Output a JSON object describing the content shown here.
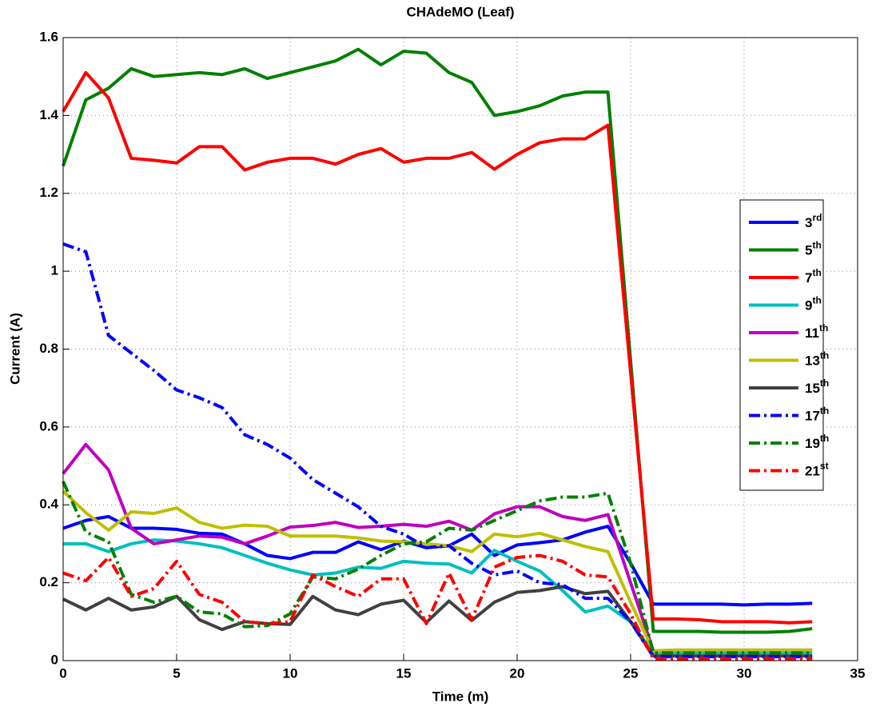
{
  "chart_data": {
    "type": "line",
    "title": "CHAdeMO (Leaf)",
    "xlabel": "Time (m)",
    "ylabel": "Current (A)",
    "x": [
      0,
      1,
      2,
      3,
      4,
      5,
      6,
      7,
      8,
      9,
      10,
      11,
      12,
      13,
      14,
      15,
      16,
      17,
      18,
      19,
      20,
      21,
      22,
      23,
      24,
      25,
      26,
      27,
      28,
      29,
      30,
      31,
      32,
      33
    ],
    "xlim": [
      0,
      35
    ],
    "xticks": [
      0,
      5,
      10,
      15,
      20,
      25,
      30,
      35
    ],
    "ylim": [
      0,
      1.6
    ],
    "yticks": [
      0,
      0.2,
      0.4,
      0.6,
      0.8,
      1,
      1.2,
      1.4,
      1.6
    ],
    "grid": true,
    "legend": "right",
    "series": [
      {
        "name": "3rd",
        "color": "#0000ff",
        "linestyle": "-",
        "values": [
          0.34,
          0.36,
          0.37,
          0.34,
          0.34,
          0.337,
          0.327,
          0.325,
          0.3,
          0.27,
          0.262,
          0.278,
          0.278,
          0.305,
          0.285,
          0.307,
          0.29,
          0.295,
          0.325,
          0.27,
          0.297,
          0.303,
          0.31,
          0.33,
          0.345,
          0.25,
          0.145,
          0.145,
          0.145,
          0.145,
          0.143,
          0.145,
          0.145,
          0.147
        ]
      },
      {
        "name": "5th",
        "color": "#008000",
        "linestyle": "-",
        "values": [
          1.27,
          1.44,
          1.47,
          1.52,
          1.5,
          1.505,
          1.51,
          1.505,
          1.52,
          1.495,
          1.51,
          1.525,
          1.54,
          1.57,
          1.53,
          1.565,
          1.56,
          1.51,
          1.485,
          1.4,
          1.41,
          1.425,
          1.45,
          1.46,
          1.46,
          0.77,
          0.075,
          0.075,
          0.075,
          0.073,
          0.073,
          0.073,
          0.075,
          0.082
        ]
      },
      {
        "name": "7th",
        "color": "#ff0000",
        "linestyle": "-",
        "values": [
          1.41,
          1.51,
          1.445,
          1.29,
          1.285,
          1.278,
          1.32,
          1.32,
          1.26,
          1.28,
          1.29,
          1.29,
          1.275,
          1.3,
          1.315,
          1.28,
          1.29,
          1.29,
          1.305,
          1.262,
          1.3,
          1.33,
          1.34,
          1.34,
          1.375,
          0.74,
          0.107,
          0.107,
          0.105,
          0.1,
          0.1,
          0.1,
          0.097,
          0.1
        ]
      },
      {
        "name": "9th",
        "color": "#00bfbf",
        "linestyle": "-",
        "values": [
          0.3,
          0.3,
          0.28,
          0.3,
          0.31,
          0.307,
          0.3,
          0.29,
          0.27,
          0.25,
          0.233,
          0.22,
          0.225,
          0.24,
          0.237,
          0.255,
          0.25,
          0.248,
          0.225,
          0.283,
          0.255,
          0.23,
          0.18,
          0.125,
          0.14,
          0.1,
          0.02,
          0.02,
          0.02,
          0.02,
          0.02,
          0.02,
          0.02,
          0.02
        ]
      },
      {
        "name": "11th",
        "color": "#bf00bf",
        "linestyle": "-",
        "values": [
          0.48,
          0.555,
          0.49,
          0.34,
          0.3,
          0.31,
          0.32,
          0.317,
          0.3,
          0.32,
          0.343,
          0.347,
          0.355,
          0.342,
          0.345,
          0.35,
          0.345,
          0.358,
          0.335,
          0.377,
          0.395,
          0.395,
          0.37,
          0.36,
          0.375,
          0.2,
          0.025,
          0.027,
          0.027,
          0.027,
          0.027,
          0.027,
          0.027,
          0.027
        ]
      },
      {
        "name": "13th",
        "color": "#bfbf00",
        "linestyle": "-",
        "values": [
          0.435,
          0.38,
          0.335,
          0.382,
          0.378,
          0.392,
          0.355,
          0.34,
          0.348,
          0.345,
          0.32,
          0.32,
          0.32,
          0.315,
          0.307,
          0.305,
          0.3,
          0.295,
          0.28,
          0.325,
          0.318,
          0.327,
          0.31,
          0.293,
          0.28,
          0.15,
          0.025,
          0.027,
          0.027,
          0.027,
          0.027,
          0.027,
          0.027,
          0.027
        ]
      },
      {
        "name": "15th",
        "color": "#404040",
        "linestyle": "-",
        "values": [
          0.158,
          0.13,
          0.16,
          0.13,
          0.138,
          0.165,
          0.105,
          0.08,
          0.1,
          0.095,
          0.093,
          0.165,
          0.13,
          0.118,
          0.145,
          0.155,
          0.098,
          0.153,
          0.103,
          0.15,
          0.175,
          0.18,
          0.19,
          0.172,
          0.178,
          0.1,
          0.012,
          0.012,
          0.012,
          0.012,
          0.012,
          0.012,
          0.012,
          0.012
        ]
      },
      {
        "name": "17th",
        "color": "#0000ff",
        "linestyle": "-.",
        "values": [
          1.07,
          1.05,
          0.835,
          0.79,
          0.745,
          0.695,
          0.675,
          0.65,
          0.58,
          0.555,
          0.52,
          0.465,
          0.43,
          0.395,
          0.345,
          0.325,
          0.29,
          0.295,
          0.25,
          0.22,
          0.23,
          0.2,
          0.195,
          0.16,
          0.16,
          0.1,
          0.01,
          0.01,
          0.01,
          0.01,
          0.01,
          0.01,
          0.01,
          0.01
        ]
      },
      {
        "name": "19th",
        "color": "#008000",
        "linestyle": "-.",
        "values": [
          0.46,
          0.33,
          0.305,
          0.17,
          0.15,
          0.165,
          0.125,
          0.12,
          0.087,
          0.09,
          0.12,
          0.215,
          0.21,
          0.235,
          0.27,
          0.3,
          0.305,
          0.34,
          0.335,
          0.36,
          0.385,
          0.41,
          0.42,
          0.42,
          0.43,
          0.25,
          0.02,
          0.02,
          0.02,
          0.02,
          0.02,
          0.02,
          0.02,
          0.02
        ]
      },
      {
        "name": "21st",
        "color": "#ff0000",
        "linestyle": "-.",
        "values": [
          0.225,
          0.205,
          0.265,
          0.165,
          0.185,
          0.255,
          0.17,
          0.15,
          0.1,
          0.095,
          0.1,
          0.22,
          0.19,
          0.165,
          0.21,
          0.21,
          0.095,
          0.225,
          0.105,
          0.24,
          0.265,
          0.27,
          0.255,
          0.22,
          0.215,
          0.12,
          0.005,
          0.005,
          0.005,
          0.005,
          0.005,
          0.005,
          0.005,
          0.005
        ]
      }
    ]
  }
}
